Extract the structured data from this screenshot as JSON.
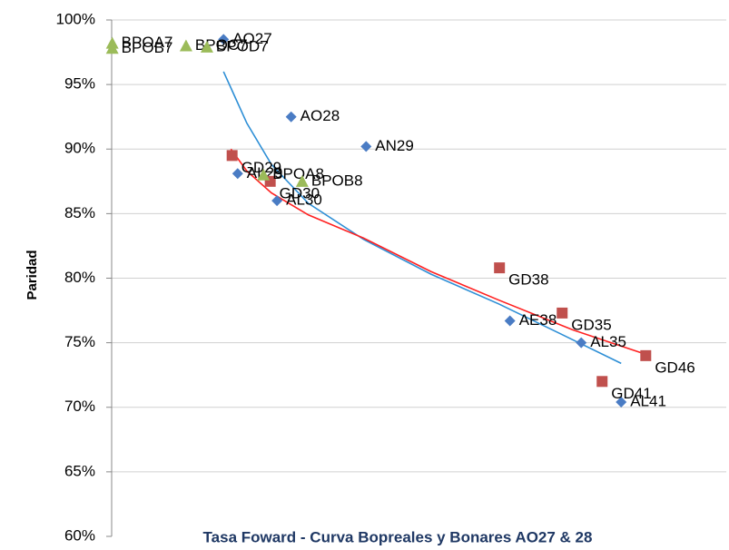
{
  "chart_data": {
    "type": "scatter",
    "title": "Tasa Foward - Curva Bopreales y Bonares AO27 & 28",
    "y_label": "Paridad",
    "xlim": [
      0,
      100
    ],
    "ylim": [
      60,
      100
    ],
    "yticks": [
      {
        "value": 60,
        "label": "60%"
      },
      {
        "value": 65,
        "label": "65%"
      },
      {
        "value": 70,
        "label": "70%"
      },
      {
        "value": 75,
        "label": "75%"
      },
      {
        "value": 80,
        "label": "80%"
      },
      {
        "value": 85,
        "label": "85%"
      },
      {
        "value": 90,
        "label": "90%"
      },
      {
        "value": 95,
        "label": "95%"
      },
      {
        "value": 100,
        "label": "100%"
      }
    ],
    "grid": true,
    "series": [
      {
        "marker": "diamond",
        "color": "#4a7cc4",
        "labels": [
          "AO27",
          "AO28",
          "AN29",
          "AL29",
          "AL30",
          "AE38",
          "AL35",
          "AL41"
        ],
        "x": [
          18.2,
          29.2,
          41.4,
          20.5,
          26.9,
          64.8,
          76.4,
          82.9
        ],
        "values": [
          98.5,
          92.5,
          90.2,
          88.1,
          86,
          76.7,
          75,
          70.4
        ]
      },
      {
        "marker": "square",
        "color": "#c0504d",
        "labels": [
          "GD29",
          "GD30",
          "GD38",
          "GD35",
          "GD41",
          "GD46"
        ],
        "x": [
          19.6,
          25.8,
          63.1,
          73.3,
          79.8,
          86.9
        ],
        "values": [
          89.5,
          87.5,
          80.8,
          77.3,
          72,
          74
        ]
      },
      {
        "marker": "triangle",
        "color": "#9bbb59",
        "labels": [
          "BPOA7",
          "BPOB7",
          "BPOC7",
          "BPOD7",
          "BPOA8",
          "BPOB8"
        ],
        "x": [
          0.1,
          0.1,
          12.1,
          15.5,
          24.7,
          31
        ],
        "values": [
          98.2,
          97.8,
          98,
          97.9,
          88,
          87.5
        ]
      }
    ],
    "trendlines": [
      {
        "color": "#2e8fd6",
        "x": [
          18.2,
          22,
          26,
          32,
          41,
          52,
          63,
          73,
          82.9
        ],
        "values": [
          96,
          92,
          88.8,
          85.8,
          83,
          80.3,
          78,
          75.7,
          73.4
        ]
      },
      {
        "color": "#ff2020",
        "x": [
          19.4,
          22,
          26,
          32,
          41,
          52,
          63,
          75,
          86.9
        ],
        "values": [
          90,
          88.3,
          86.6,
          84.9,
          83.1,
          80.5,
          78.3,
          76,
          74.1
        ]
      }
    ]
  }
}
